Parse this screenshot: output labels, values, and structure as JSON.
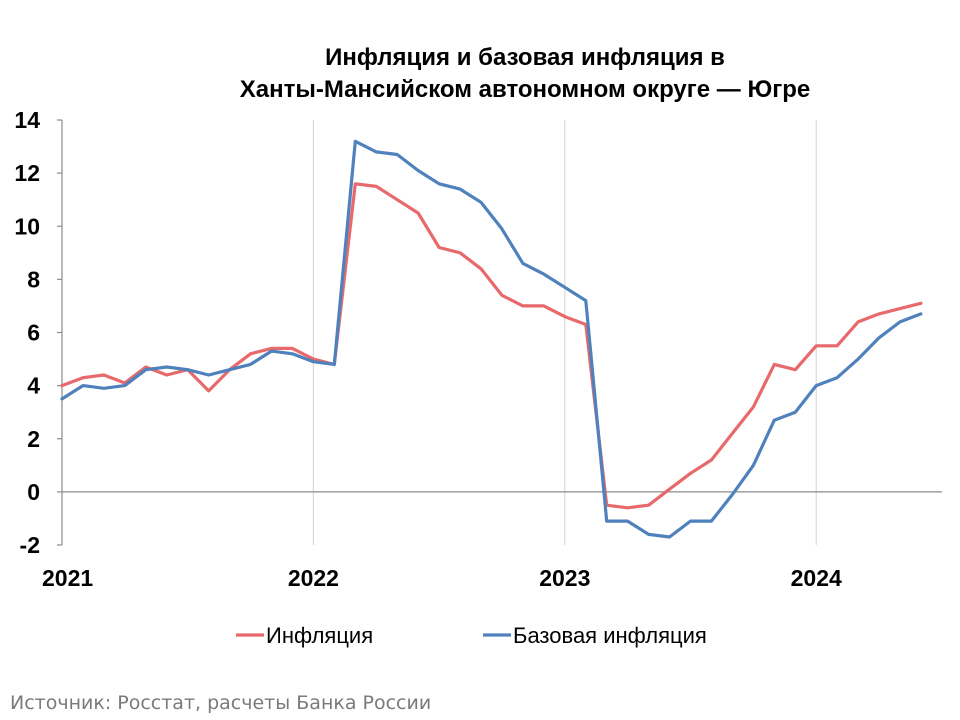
{
  "title_line1": "Инфляция и базовая инфляция в",
  "title_line2": "Ханты-Мансийском автономном округе — Югре",
  "source": "Источник: Росстат, расчеты Банка России",
  "chart_data": {
    "type": "line",
    "title": "Инфляция и базовая инфляция в Ханты-Мансийском автономном округе — Югре",
    "ylim": [
      -2,
      14
    ],
    "yticks": [
      -2,
      0,
      2,
      4,
      6,
      8,
      10,
      12,
      14
    ],
    "xticks": [
      "2021",
      "2022",
      "2023",
      "2024"
    ],
    "x": [
      "2021-01",
      "2021-02",
      "2021-03",
      "2021-04",
      "2021-05",
      "2021-06",
      "2021-07",
      "2021-08",
      "2021-09",
      "2021-10",
      "2021-11",
      "2021-12",
      "2022-01",
      "2022-02",
      "2022-03",
      "2022-04",
      "2022-05",
      "2022-06",
      "2022-07",
      "2022-08",
      "2022-09",
      "2022-10",
      "2022-11",
      "2022-12",
      "2023-01",
      "2023-02",
      "2023-03",
      "2023-04",
      "2023-05",
      "2023-06",
      "2023-07",
      "2023-08",
      "2023-09",
      "2023-10",
      "2023-11",
      "2023-12",
      "2024-01",
      "2024-02",
      "2024-03",
      "2024-04",
      "2024-05",
      "2024-06"
    ],
    "grid": "vertical lines at years",
    "legend": "bottom",
    "series": [
      {
        "name": "Инфляция",
        "color": "#e8696b",
        "values": [
          4.0,
          4.3,
          4.4,
          4.1,
          4.7,
          4.4,
          4.6,
          3.8,
          4.6,
          5.2,
          5.4,
          5.4,
          5.0,
          4.8,
          11.6,
          11.5,
          11.0,
          10.5,
          9.2,
          9.0,
          8.4,
          7.4,
          7.0,
          7.0,
          6.6,
          6.3,
          -0.5,
          -0.6,
          -0.5,
          0.1,
          0.7,
          1.2,
          2.2,
          3.2,
          4.8,
          4.6,
          5.5,
          5.5,
          6.4,
          6.7,
          6.9,
          7.1
        ]
      },
      {
        "name": "Базовая инфляция",
        "color": "#4f81bd",
        "values": [
          3.5,
          4.0,
          3.9,
          4.0,
          4.6,
          4.7,
          4.6,
          4.4,
          4.6,
          4.8,
          5.3,
          5.2,
          4.9,
          4.8,
          13.2,
          12.8,
          12.7,
          12.1,
          11.6,
          11.4,
          10.9,
          9.9,
          8.6,
          8.2,
          7.7,
          7.2,
          -1.1,
          -1.1,
          -1.6,
          -1.7,
          -1.1,
          -1.1,
          -0.1,
          1.0,
          2.7,
          3.0,
          4.0,
          4.3,
          5.0,
          5.8,
          6.4,
          6.7
        ]
      }
    ]
  }
}
